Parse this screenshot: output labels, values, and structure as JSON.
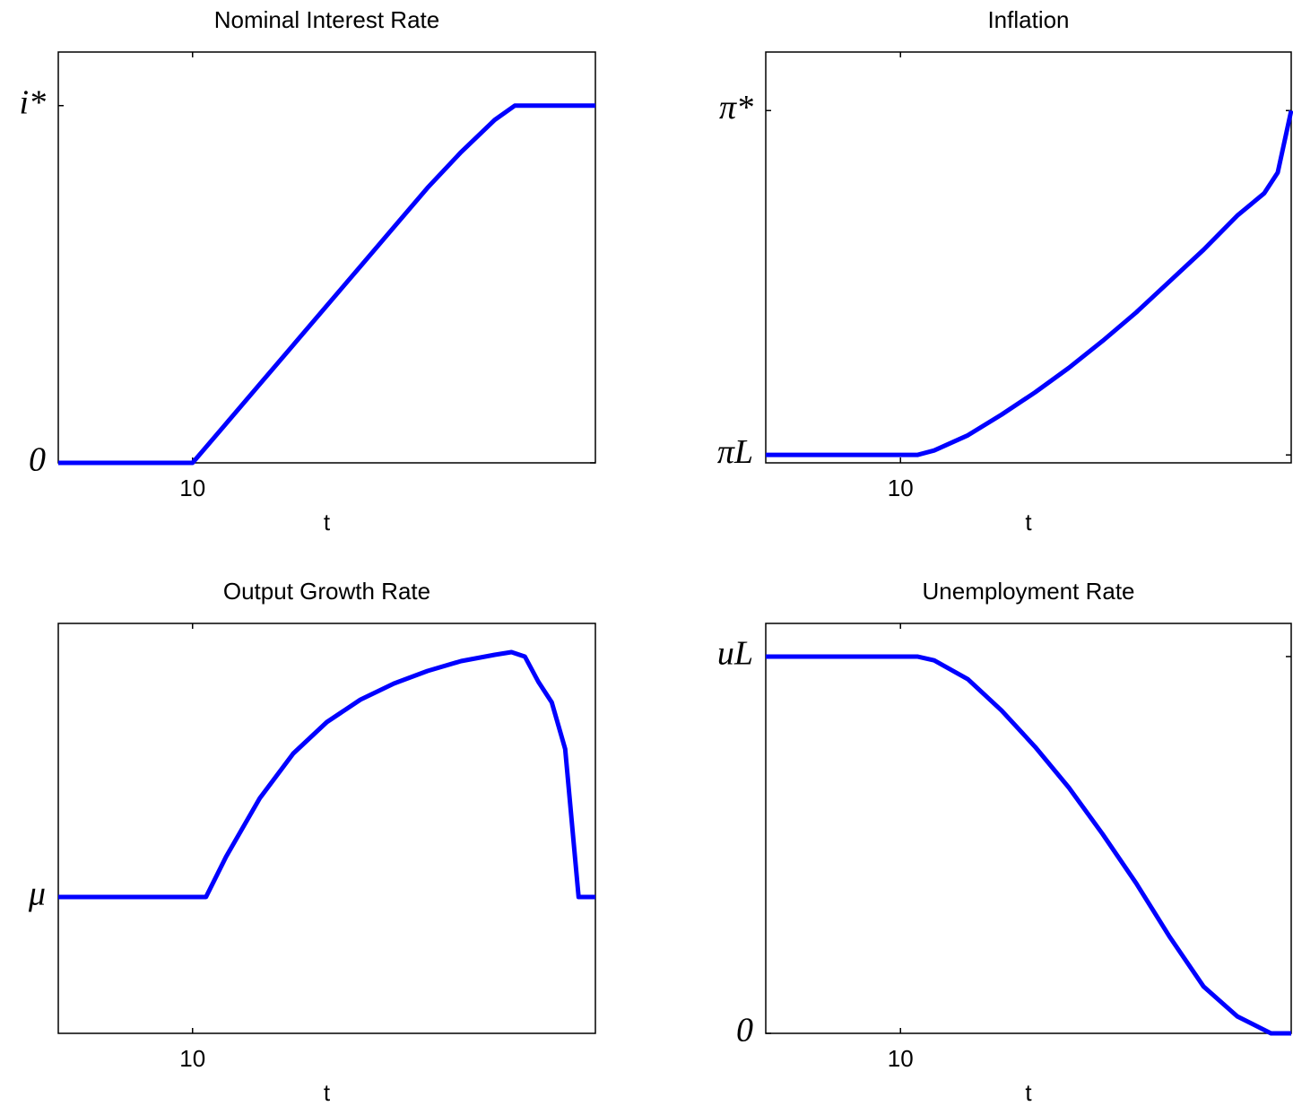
{
  "chart_data": [
    {
      "type": "line",
      "title": "Nominal Interest Rate",
      "xlabel": "t",
      "x": [
        6,
        7,
        8,
        9,
        10,
        11,
        12,
        13,
        14,
        15,
        16,
        17,
        18,
        19,
        19.6,
        20,
        21,
        22
      ],
      "series": [
        {
          "color": "#0000ff",
          "values": [
            0,
            0,
            0,
            0,
            0,
            0.11,
            0.22,
            0.33,
            0.44,
            0.55,
            0.66,
            0.77,
            0.87,
            0.96,
            1,
            1,
            1,
            1
          ]
        }
      ],
      "xlim": [
        6,
        22
      ],
      "xticks": [
        10
      ],
      "ylim": [
        0,
        1.15
      ],
      "yticks": [
        0,
        {
          "value": 1,
          "label": "i*"
        }
      ]
    },
    {
      "type": "line",
      "title": "Inflation",
      "xlabel": "t",
      "x": [
        6,
        7,
        8,
        9,
        10,
        10.5,
        11,
        12,
        13,
        14,
        15,
        16,
        17,
        18,
        19,
        20,
        20.8,
        21.2,
        21.6
      ],
      "series": [
        {
          "color": "#0000ff",
          "values": [
            0,
            0,
            0,
            0,
            0,
            0,
            0.013,
            0.057,
            0.117,
            0.182,
            0.253,
            0.331,
            0.414,
            0.505,
            0.596,
            0.695,
            0.76,
            0.82,
            1
          ]
        }
      ],
      "xlim": [
        6,
        21.6
      ],
      "xticks": [
        10
      ],
      "ylim": [
        -0.023,
        1.17
      ],
      "yticks": [
        {
          "value": 0,
          "label": "πL"
        },
        {
          "value": 1,
          "label": "π*"
        }
      ]
    },
    {
      "type": "line",
      "title": "Output Growth Rate",
      "xlabel": "t",
      "x": [
        6,
        7,
        8,
        9,
        10,
        10.4,
        11,
        12,
        13,
        14,
        15,
        16,
        17,
        18,
        19,
        19.5,
        19.9,
        20.3,
        20.7,
        21.1,
        21.5,
        22
      ],
      "series": [
        {
          "color": "#0000ff",
          "values": [
            0,
            0,
            0,
            0,
            0,
            0,
            0.45,
            1.1,
            1.6,
            1.95,
            2.2,
            2.38,
            2.52,
            2.63,
            2.7,
            2.73,
            2.68,
            2.4,
            2.17,
            1.65,
            0,
            0
          ]
        }
      ],
      "xlim": [
        6,
        22
      ],
      "xticks": [
        10
      ],
      "ylim": [
        -1.52,
        3.05
      ],
      "yticks": [
        {
          "value": 0,
          "label": "μ"
        }
      ]
    },
    {
      "type": "line",
      "title": "Unemployment Rate",
      "xlabel": "t",
      "x": [
        6,
        7,
        8,
        9,
        10,
        10.5,
        11,
        12,
        13,
        14,
        15,
        16,
        17,
        18,
        19,
        20,
        21,
        21.6
      ],
      "series": [
        {
          "color": "#0000ff",
          "values": [
            1,
            1,
            1,
            1,
            1,
            1,
            0.99,
            0.94,
            0.857,
            0.76,
            0.652,
            0.529,
            0.398,
            0.255,
            0.124,
            0.045,
            0,
            0
          ]
        }
      ],
      "xlim": [
        6,
        21.6
      ],
      "xticks": [
        10
      ],
      "ylim": [
        0,
        1.088
      ],
      "yticks": [
        0,
        {
          "value": 1,
          "label": "uL"
        }
      ]
    }
  ]
}
